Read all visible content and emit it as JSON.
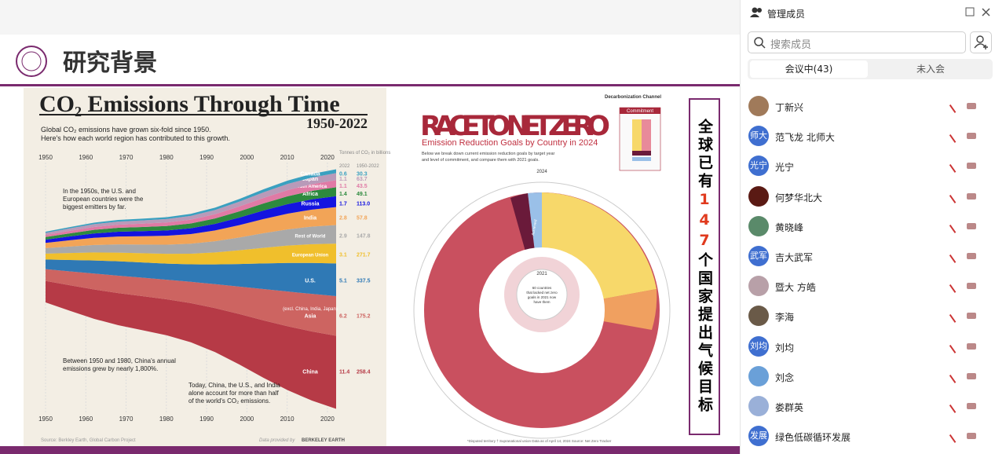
{
  "slide": {
    "title": "研究背景"
  },
  "emissions": {
    "title": "CO₂ Emissions Through Time",
    "years": "1950-2022",
    "subtitle": [
      "Global CO₂ emissions have grown six-fold since 1950.",
      "Here's how each world region has contributed to this growth."
    ],
    "x_labels": [
      "1950",
      "1960",
      "1970",
      "1980",
      "1990",
      "2000",
      "2010",
      "2020"
    ],
    "unit_label": "Tonnes of CO₂ in billions",
    "col_headers": [
      "2022",
      "1950-2022"
    ],
    "regions": [
      {
        "name": "China",
        "v2022": "11.4",
        "total": "258.4",
        "color": "#b63a46"
      },
      {
        "name": "Asia",
        "v2022": "6.2",
        "total": "175.2",
        "color": "#cd6461"
      },
      {
        "name": "U.S.",
        "v2022": "5.1",
        "total": "337.5",
        "color": "#2f79b5"
      },
      {
        "name": "European Union",
        "v2022": "3.1",
        "total": "271.7",
        "color": "#f0bf2c"
      },
      {
        "name": "Rest of World",
        "v2022": "2.9",
        "total": "147.8",
        "color": "#a9a9a9"
      },
      {
        "name": "India",
        "v2022": "2.8",
        "total": "57.8",
        "color": "#f2a457"
      },
      {
        "name": "Russia",
        "v2022": "1.7",
        "total": "113.0",
        "color": "#1414e0"
      },
      {
        "name": "Africa",
        "v2022": "1.4",
        "total": "49.1",
        "color": "#2d8a3e"
      },
      {
        "name": "South America",
        "v2022": "1.1",
        "total": "43.5",
        "color": "#e07aa5"
      },
      {
        "name": "Japan",
        "v2022": "1.1",
        "total": "63.7",
        "color": "#b99ab9"
      },
      {
        "name": "Canada",
        "v2022": "0.6",
        "total": "30.3",
        "color": "#3aa0c0"
      }
    ],
    "asia_note": "(excl. China, India, Japan)",
    "note1": [
      "In the 1950s, the U.S. and",
      "European countries were the",
      "biggest emitters by far."
    ],
    "note2": [
      "Between 1950 and 1980, China's annual",
      "emissions grew by nearly 1,800%."
    ],
    "note3": [
      "Today, China, the U.S., and India",
      "alone account for more than half",
      "of the world's CO₂ emissions."
    ],
    "source": "Source: Berkley Earth, Global Carbon Project",
    "provided": "Data provided by",
    "provider": "BERKELEY EARTH"
  },
  "netzero": {
    "channel": "Decarbonization Channel",
    "title": "RACE TO NET ZERO",
    "subtitle": "Emission Reduction Goals by Country in 2024",
    "intro": [
      "Below we break down current emission reduction goals by target year",
      "and level of commitment, and compare them with 2021 goals."
    ],
    "legend_title": "Commitment",
    "outer_year": "2024",
    "center_year": "2021",
    "center_text": [
      "60 countries",
      "that lacked net zero",
      "goals in 2021 now",
      "have them"
    ],
    "achieved": "Achieved",
    "footer": "*Disputed territory   † Supranational union   Data as of April 14, 2024   Source: Net Zero Tracker"
  },
  "callout": {
    "prefix": "全球已有",
    "number": "147",
    "suffix": "个国家提出气候目标"
  },
  "panel": {
    "header": "管理成员",
    "search": "搜索成员",
    "tabs": [
      "会议中(43)",
      "未入会"
    ],
    "members": [
      {
        "name": "丁新兴",
        "color": "#a07a5a"
      },
      {
        "name": "范飞龙 北师大",
        "avatar": "师大",
        "color": "#3f6fd0"
      },
      {
        "name": "光宁",
        "avatar": "光宁",
        "color": "#3f6fd0"
      },
      {
        "name": "何梦华北大",
        "color": "#5a1a14"
      },
      {
        "name": "黄晓峰",
        "color": "#5a8a6a"
      },
      {
        "name": "吉大武军",
        "avatar": "武军",
        "color": "#3f6fd0"
      },
      {
        "name": "暨大 方皓",
        "color": "#b8a0a8"
      },
      {
        "name": "李海",
        "color": "#6a5a48"
      },
      {
        "name": "刘均",
        "avatar": "刘均",
        "color": "#3f6fd0"
      },
      {
        "name": "刘念",
        "color": "#6aa0d8"
      },
      {
        "name": "娄群英",
        "color": "#9ab0d8"
      },
      {
        "name": "绿色低碳循环发展",
        "avatar": "发展",
        "color": "#3f6fd0"
      }
    ]
  }
}
